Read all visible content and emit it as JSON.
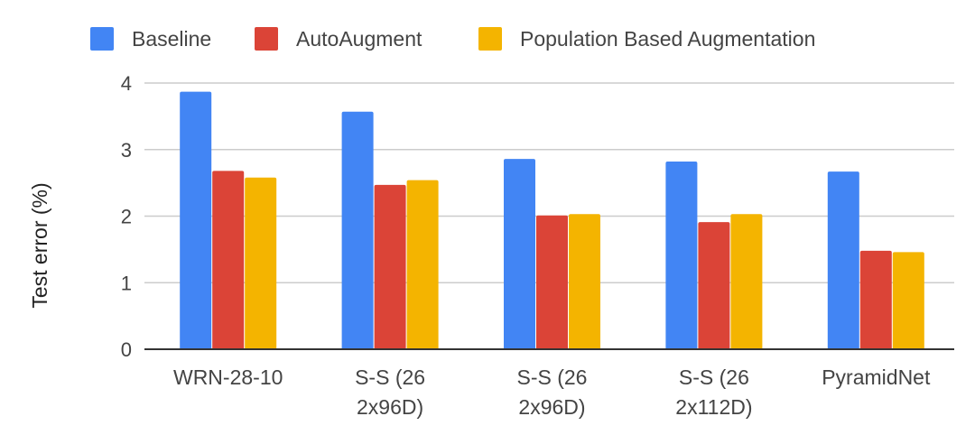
{
  "chart_data": {
    "type": "bar",
    "title": "",
    "xlabel": "",
    "ylabel": "Test error (%)",
    "ylim": [
      0,
      4
    ],
    "yticks": [
      "0",
      "1",
      "2",
      "3",
      "4"
    ],
    "grid": true,
    "legend_position": "top",
    "categories": [
      [
        "WRN-28-10"
      ],
      [
        "S-S (26",
        "2x96D)"
      ],
      [
        "S-S (26",
        "2x96D)"
      ],
      [
        "S-S (26",
        "2x112D)"
      ],
      [
        "PyramidNet"
      ]
    ],
    "series": [
      {
        "name": "Baseline",
        "color": "#4285f4",
        "values": [
          3.87,
          3.57,
          2.86,
          2.82,
          2.67
        ]
      },
      {
        "name": "AutoAugment",
        "color": "#db4437",
        "values": [
          2.68,
          2.47,
          2.01,
          1.91,
          1.48
        ]
      },
      {
        "name": "Population Based Augmentation",
        "color": "#f4b400",
        "values": [
          2.58,
          2.54,
          2.03,
          2.03,
          1.46
        ]
      }
    ]
  }
}
